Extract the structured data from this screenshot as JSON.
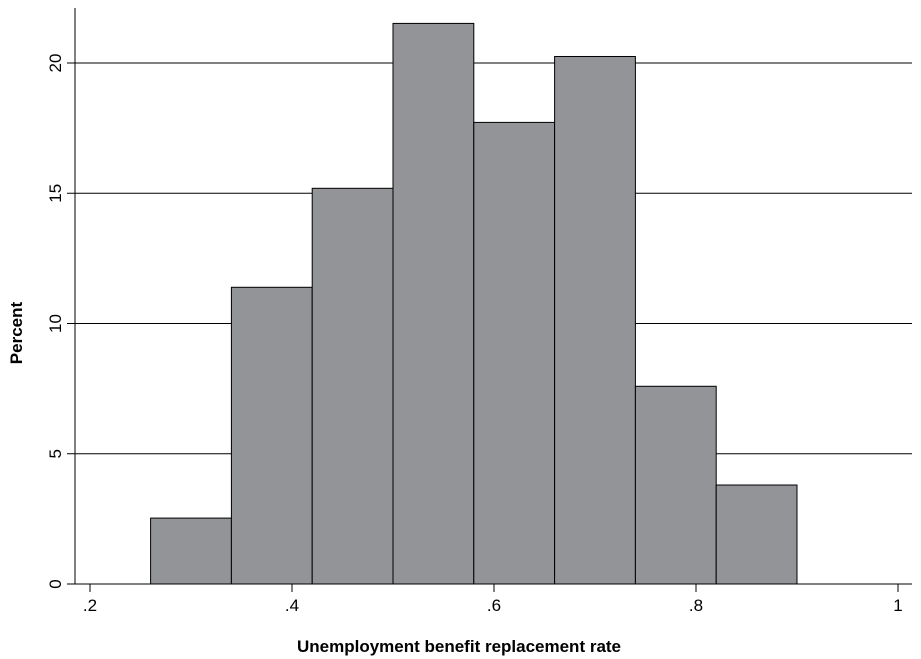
{
  "chart_data": {
    "type": "histogram",
    "title": "",
    "xlabel": "Unemployment benefit replacement rate",
    "ylabel": "Percent",
    "xlim": [
      0.2,
      1.0
    ],
    "ylim": [
      0,
      22
    ],
    "x_ticks": [
      0.2,
      0.4,
      0.6,
      0.8,
      1.0
    ],
    "x_tick_labels": [
      ".2",
      ".4",
      ".6",
      ".8",
      "1"
    ],
    "y_ticks": [
      0,
      5,
      10,
      15,
      20
    ],
    "y_tick_labels": [
      "0",
      "5",
      "10",
      "15",
      "20"
    ],
    "grid": "horizontal",
    "bar_color": "#939498",
    "bins": [
      {
        "start": 0.26,
        "end": 0.34,
        "value": 2.53
      },
      {
        "start": 0.34,
        "end": 0.42,
        "value": 11.39
      },
      {
        "start": 0.42,
        "end": 0.5,
        "value": 15.19
      },
      {
        "start": 0.5,
        "end": 0.58,
        "value": 21.52
      },
      {
        "start": 0.58,
        "end": 0.66,
        "value": 17.72
      },
      {
        "start": 0.66,
        "end": 0.74,
        "value": 20.25
      },
      {
        "start": 0.74,
        "end": 0.82,
        "value": 7.59
      },
      {
        "start": 0.82,
        "end": 0.9,
        "value": 3.8
      }
    ]
  }
}
